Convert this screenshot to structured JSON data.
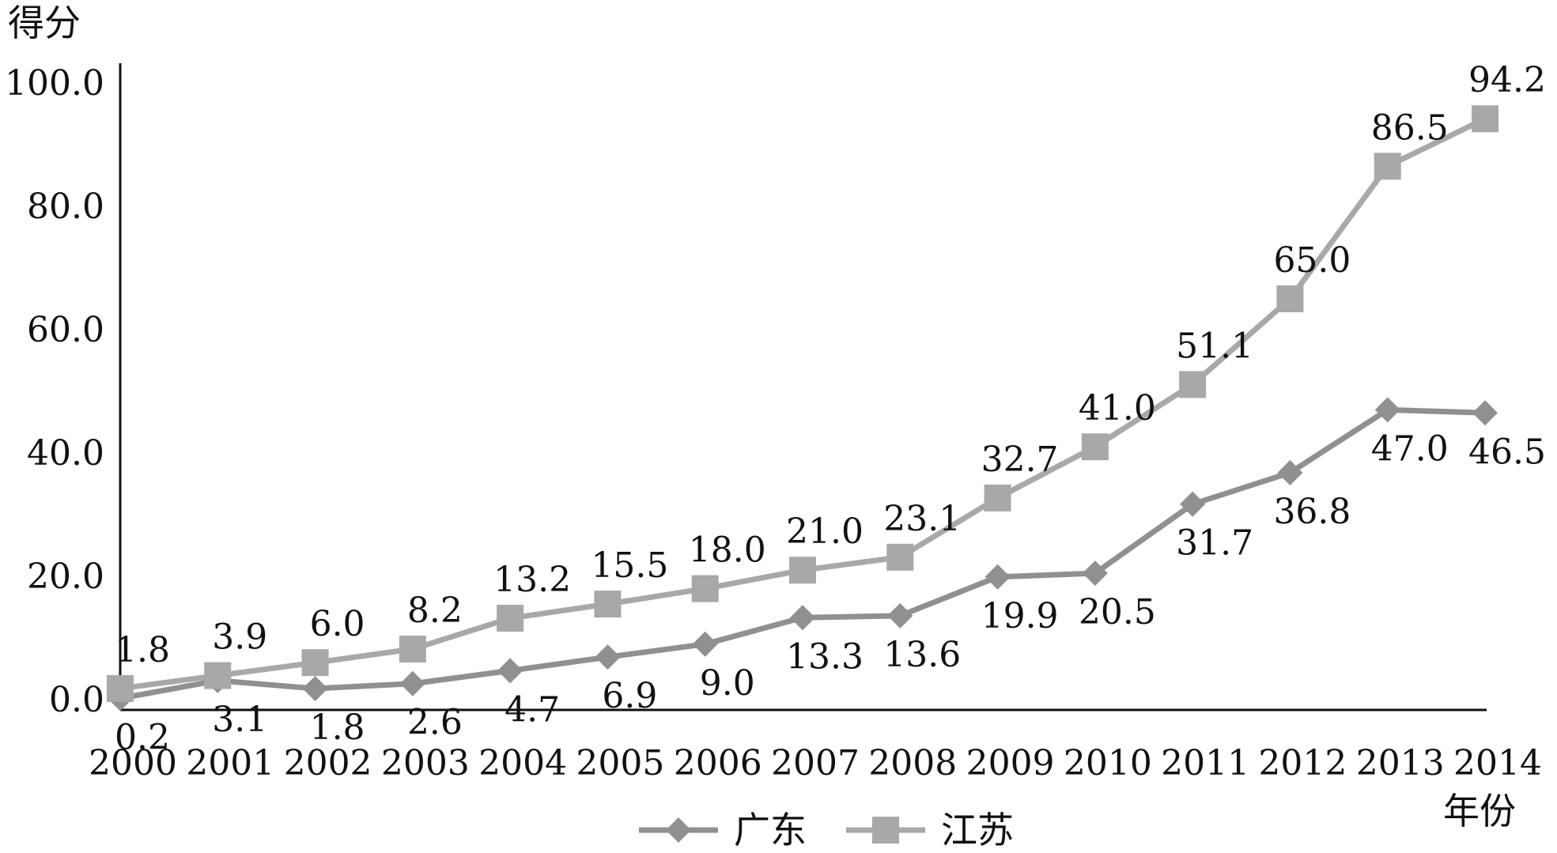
{
  "chart_data": {
    "type": "line",
    "ylabel": "得分",
    "xlabel": "年份",
    "ylim": [
      0,
      100
    ],
    "yticks": [
      "0.0",
      "20.0",
      "40.0",
      "60.0",
      "80.0",
      "100.0"
    ],
    "categories": [
      "2000",
      "2001",
      "2002",
      "2003",
      "2004",
      "2005",
      "2006",
      "2007",
      "2008",
      "2009",
      "2010",
      "2011",
      "2012",
      "2013",
      "2014"
    ],
    "grid": false,
    "legend_position": "bottom",
    "series": [
      {
        "name": "广东",
        "marker": "diamond",
        "color": "#909090",
        "values": [
          0.2,
          3.1,
          1.8,
          2.6,
          4.7,
          6.9,
          9.0,
          13.3,
          13.6,
          19.9,
          20.5,
          31.7,
          36.8,
          47.0,
          46.5
        ],
        "labels": [
          "0.2",
          "3.1",
          "1.8",
          "2.6",
          "4.7",
          "6.9",
          "9.0",
          "13.3",
          "13.6",
          "19.9",
          "20.5",
          "31.7",
          "36.8",
          "47.0",
          "46.5"
        ]
      },
      {
        "name": "江苏",
        "marker": "square",
        "color": "#a8a8a8",
        "values": [
          1.8,
          3.9,
          6.0,
          8.2,
          13.2,
          15.5,
          18.0,
          21.0,
          23.1,
          32.7,
          41.0,
          51.1,
          65.0,
          86.5,
          94.2
        ],
        "labels": [
          "1.8",
          "3.9",
          "6.0",
          "8.2",
          "13.2",
          "15.5",
          "18.0",
          "21.0",
          "23.1",
          "32.7",
          "41.0",
          "51.1",
          "65.0",
          "86.5",
          "94.2"
        ]
      }
    ]
  }
}
